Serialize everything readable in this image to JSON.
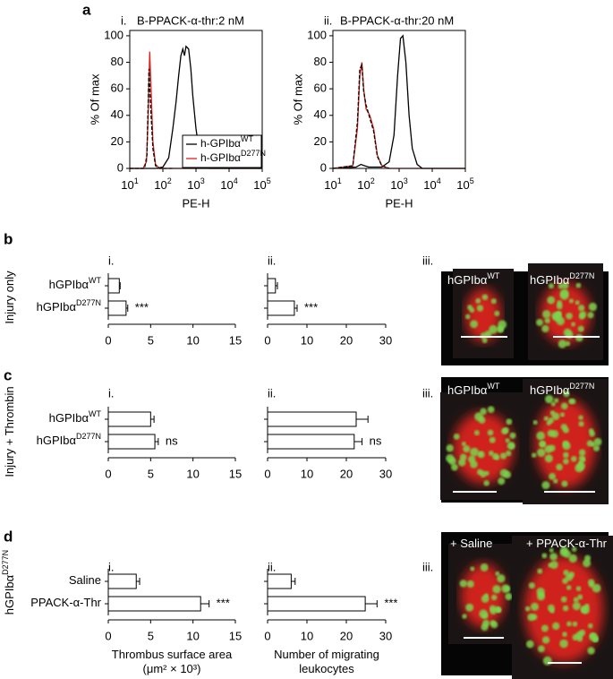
{
  "panel_letters": [
    "a",
    "b",
    "c",
    "d"
  ],
  "row_labels": [
    {
      "label": "Injury only"
    },
    {
      "label": "Injury + Thrombin"
    },
    {
      "label": "hGPIbα",
      "sup": "D277N"
    }
  ],
  "chart_data": [
    {
      "type": "line",
      "panel": "i.",
      "title": "B-PPACK-α-thr:2 nM",
      "xlabel": "PE-H",
      "ylabel": "% Of max",
      "xscale": "log",
      "xlim": [
        10,
        100000
      ],
      "xticks": [
        {
          "value": 10,
          "label": "10",
          "exp": "1"
        },
        {
          "value": 100,
          "label": "10",
          "exp": "2"
        },
        {
          "value": 1000,
          "label": "10",
          "exp": "3"
        },
        {
          "value": 10000,
          "label": "10",
          "exp": "4"
        },
        {
          "value": 100000,
          "label": "10",
          "exp": "5"
        }
      ],
      "ylim": [
        0,
        104
      ],
      "yticks": [
        0,
        20,
        40,
        60,
        80,
        100
      ],
      "legend": "lower right",
      "series": [
        {
          "name": {
            "label": "h-GPIbα",
            "sup": "WT"
          },
          "color": "#000000",
          "dash": "solid",
          "x": [
            10,
            60,
            100,
            150,
            200,
            250,
            300,
            350,
            400,
            450,
            500,
            600,
            700,
            800,
            1000,
            1300,
            1600,
            2500,
            100000
          ],
          "values": [
            0,
            0,
            1,
            8,
            30,
            50,
            70,
            85,
            90,
            85,
            92,
            90,
            75,
            55,
            30,
            10,
            3,
            0,
            0
          ]
        },
        {
          "name": {
            "label": "h-GPIbα",
            "sup": "D277N"
          },
          "color": "#e0201a",
          "dash": "solid",
          "x": [
            10,
            25,
            32,
            36,
            40,
            44,
            50,
            60,
            80,
            100000
          ],
          "values": [
            0,
            0,
            5,
            40,
            88,
            60,
            20,
            3,
            0,
            0
          ]
        },
        {
          "color": "#000000",
          "dash": "dashed",
          "x": [
            10,
            28,
            33,
            38,
            42,
            50,
            60,
            80,
            200
          ],
          "values": [
            0,
            0,
            10,
            75,
            50,
            15,
            2,
            0,
            0
          ]
        }
      ]
    },
    {
      "type": "line",
      "panel": "ii.",
      "title": "B-PPACK-α-thr:20 nM",
      "xlabel": "PE-H",
      "ylabel": "% Of max",
      "xscale": "log",
      "xlim": [
        10,
        100000
      ],
      "xticks": [
        {
          "value": 10,
          "label": "10",
          "exp": "1"
        },
        {
          "value": 100,
          "label": "10",
          "exp": "2"
        },
        {
          "value": 1000,
          "label": "10",
          "exp": "3"
        },
        {
          "value": 10000,
          "label": "10",
          "exp": "4"
        },
        {
          "value": 100000,
          "label": "10",
          "exp": "5"
        }
      ],
      "ylim": [
        0,
        104
      ],
      "yticks": [
        0,
        20,
        40,
        60,
        80,
        100
      ],
      "series": [
        {
          "color": "#000000",
          "dash": "solid",
          "x": [
            10,
            50,
            70,
            90,
            120,
            300,
            500,
            700,
            900,
            1100,
            1300,
            1600,
            2000,
            2500,
            3500,
            5000,
            100000
          ],
          "values": [
            0,
            1,
            3,
            2,
            1,
            1,
            5,
            25,
            70,
            98,
            100,
            80,
            40,
            15,
            3,
            0,
            0
          ]
        },
        {
          "color": "#e0201a",
          "dash": "solid",
          "x": [
            10,
            40,
            55,
            65,
            75,
            85,
            100,
            130,
            170,
            220,
            300,
            500,
            100000
          ],
          "values": [
            0,
            2,
            30,
            70,
            80,
            60,
            45,
            40,
            30,
            10,
            2,
            0,
            0
          ]
        },
        {
          "color": "#000000",
          "dash": "dashed",
          "x": [
            10,
            40,
            55,
            65,
            75,
            85,
            100,
            130,
            170,
            220,
            300,
            500
          ],
          "values": [
            0,
            2,
            35,
            75,
            78,
            58,
            48,
            38,
            28,
            9,
            2,
            0
          ]
        }
      ]
    },
    {
      "type": "hbar",
      "panel": "i.",
      "categories": [
        {
          "label": "hGPIbα",
          "sup": "WT"
        },
        {
          "label": "hGPIbα",
          "sup": "D277N"
        }
      ],
      "values": [
        1.3,
        2.1
      ],
      "errors": [
        0.1,
        0.2
      ],
      "annotations": [
        null,
        "***"
      ],
      "color": "#ffffff",
      "xlim": [
        0,
        15
      ],
      "xticks": [
        0,
        5,
        10,
        15
      ]
    },
    {
      "type": "hbar",
      "panel": "ii.",
      "values": [
        2.0,
        6.8
      ],
      "errors": [
        0.5,
        0.7
      ],
      "annotations": [
        null,
        "***"
      ],
      "color": "#ffffff",
      "xlim": [
        0,
        30
      ],
      "xticks": [
        0,
        10,
        20,
        30
      ]
    },
    {
      "type": "hbar",
      "panel": "i.",
      "categories": [
        {
          "label": "hGPIbα",
          "sup": "WT"
        },
        {
          "label": "hGPIbα",
          "sup": "D277N"
        }
      ],
      "values": [
        5.0,
        5.5
      ],
      "errors": [
        0.4,
        0.4
      ],
      "annotations": [
        null,
        "ns"
      ],
      "color": "#ffffff",
      "xlim": [
        0,
        15
      ],
      "xticks": [
        0,
        5,
        10,
        15
      ]
    },
    {
      "type": "hbar",
      "panel": "ii.",
      "values": [
        22.5,
        22.0
      ],
      "errors": [
        3.0,
        2.0
      ],
      "annotations": [
        null,
        "ns"
      ],
      "color": "#ffffff",
      "xlim": [
        0,
        30
      ],
      "xticks": [
        0,
        10,
        20,
        30
      ]
    },
    {
      "type": "hbar",
      "panel": "i.",
      "categories": [
        {
          "label": "Saline"
        },
        {
          "label": "PPACK-α-Thr"
        }
      ],
      "values": [
        3.3,
        10.9
      ],
      "errors": [
        0.4,
        1.0
      ],
      "annotations": [
        null,
        "***"
      ],
      "color": "#ffffff",
      "xlim": [
        0,
        15
      ],
      "xticks": [
        0,
        5,
        10,
        15
      ],
      "xlabel": [
        {
          "label": "Thrombus surface area"
        },
        {
          "label": "(μm² × 10³)"
        }
      ]
    },
    {
      "type": "hbar",
      "panel": "ii.",
      "values": [
        6.0,
        24.8
      ],
      "errors": [
        1.0,
        3.0
      ],
      "annotations": [
        null,
        "***"
      ],
      "color": "#ffffff",
      "xlim": [
        0,
        30
      ],
      "xticks": [
        0,
        10,
        20,
        30
      ],
      "xlabel": [
        {
          "label": "Number of migrating"
        },
        {
          "label": "leukocytes"
        }
      ]
    }
  ],
  "images": [
    {
      "panel": "iii.",
      "captions": [
        {
          "label": "hGPIbα",
          "sup": "WT"
        },
        {
          "label": "hGPIbα",
          "sup": "D277N"
        }
      ]
    },
    {
      "panel": "iii.",
      "captions": [
        {
          "label": "hGPIbα",
          "sup": "WT"
        },
        {
          "label": "hGPIbα",
          "sup": "D277N"
        }
      ]
    },
    {
      "panel": "iii.",
      "captions": [
        {
          "label": "+ Saline"
        },
        {
          "label": "+ PPACK-α-Thr"
        }
      ]
    }
  ]
}
